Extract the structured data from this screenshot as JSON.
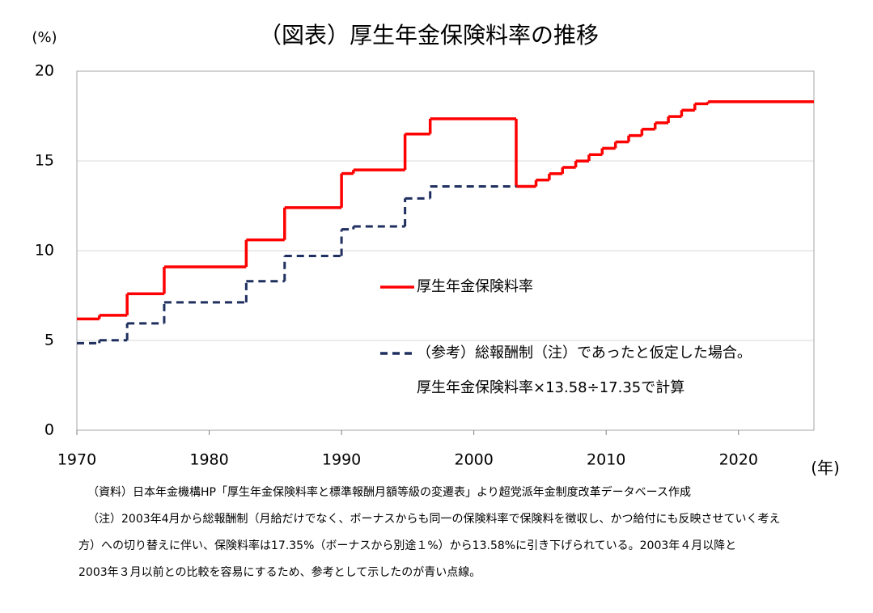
{
  "chart_data": {
    "type": "step-line",
    "title": "（図表）厚生年金保険料率の推移",
    "y_unit": "(%)",
    "x_unit": "(年)",
    "xlim": [
      1970,
      2025.7
    ],
    "xticks": [
      1970,
      1980,
      1990,
      2000,
      2010,
      2020
    ],
    "ylim": [
      0,
      20
    ],
    "yticks": [
      0,
      5,
      10,
      15,
      20
    ],
    "grid": true,
    "series": [
      {
        "name": "厚生年金保険料率",
        "color": "#ff0000",
        "dash": false,
        "x": [
          1970,
          1971.7,
          1973.8,
          1976.6,
          1982.8,
          1985.7,
          1990,
          1990.9,
          1994.8,
          1996.7,
          2003.2,
          2004.7,
          2005.7,
          2006.7,
          2007.7,
          2008.7,
          2009.7,
          2010.7,
          2011.7,
          2012.7,
          2013.7,
          2014.7,
          2015.7,
          2016.7,
          2017.7,
          2025.7
        ],
        "values": [
          6.2,
          6.4,
          7.6,
          9.1,
          10.6,
          12.4,
          14.3,
          14.5,
          16.5,
          17.35,
          13.58,
          13.934,
          14.288,
          14.642,
          14.996,
          15.35,
          15.704,
          16.058,
          16.412,
          16.766,
          17.12,
          17.474,
          17.828,
          18.182,
          18.3,
          18.3
        ]
      },
      {
        "name": "（参考）総報酬制（注）であったと仮定した場合。",
        "color": "#1f2f5f",
        "dash": true,
        "x": [
          1970,
          1971.7,
          1973.8,
          1976.6,
          1982.8,
          1985.7,
          1990,
          1990.9,
          1994.8,
          1996.7,
          2003.2
        ],
        "values": [
          4.85,
          5.01,
          5.95,
          7.12,
          8.3,
          9.71,
          11.19,
          11.35,
          12.91,
          13.58,
          13.58
        ]
      }
    ],
    "legend_note": "厚生年金保険料率×13.58÷17.35で計算",
    "notes": [
      "（資料）日本年金機構HP「厚生年金保険料率と標準報酬月額等級の変遷表」より超党派年金制度改革データベース作成",
      "（注）2003年4月から総報酬制（月給だけでなく、ボーナスからも同一の保険料率で保険料を徴収し、かつ給付にも反映させていく考え",
      "方）への切り替えに伴い、保険料率は17.35%（ボーナスから別途１%）から13.58%に引き下げられている。2003年４月以降と",
      "2003年３月以前との比較を容易にするため、参考として示したのが青い点線。"
    ]
  }
}
